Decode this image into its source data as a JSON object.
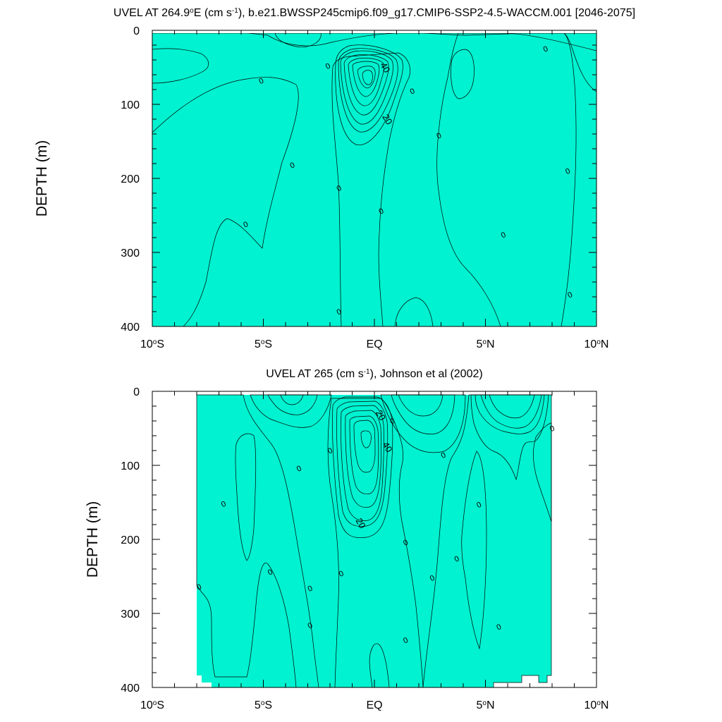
{
  "chart_data": [
    {
      "type": "contour",
      "title_main": "UVEL AT 264.9",
      "title_degree": "o",
      "title_after_degree": "E (cm s",
      "title_exponent": "-1",
      "title_rest": "), b.e21.BWSSP245cmip6.f09_g17.CMIP6-SSP2-4.5-WACCM.001 [2046-2075]",
      "ylabel": "DEPTH (m)",
      "ylim": [
        0,
        400
      ],
      "xlim": [
        -10,
        10
      ],
      "yticks": [
        0,
        100,
        200,
        300,
        400
      ],
      "xticks": [
        -10,
        -5,
        0,
        5,
        10
      ],
      "xtick_labels": [
        {
          "main": "10",
          "deg": "o",
          "suffix": "S"
        },
        {
          "main": "5",
          "deg": "o",
          "suffix": "S"
        },
        {
          "main": "EQ",
          "deg": "",
          "suffix": ""
        },
        {
          "main": "5",
          "deg": "o",
          "suffix": "N"
        },
        {
          "main": "10",
          "deg": "o",
          "suffix": "N"
        }
      ],
      "contour_labels": [
        {
          "text": "40",
          "lat": 0.5,
          "depth": 50
        },
        {
          "text": "20",
          "lat": 0.6,
          "depth": 120
        }
      ],
      "zero_markers": [
        {
          "text": "0",
          "lat": 7.7,
          "depth": 25
        },
        {
          "text": "0",
          "lat": -2.1,
          "depth": 48
        },
        {
          "text": "0",
          "lat": -5.1,
          "depth": 68
        },
        {
          "text": "0",
          "lat": 1.7,
          "depth": 82
        },
        {
          "text": "0",
          "lat": 2.9,
          "depth": 142
        },
        {
          "text": "0",
          "lat": -3.7,
          "depth": 182
        },
        {
          "text": "0",
          "lat": 8.7,
          "depth": 190
        },
        {
          "text": "0",
          "lat": -1.6,
          "depth": 213
        },
        {
          "text": "0",
          "lat": 0.3,
          "depth": 244
        },
        {
          "text": "0",
          "lat": -5.8,
          "depth": 262
        },
        {
          "text": "0",
          "lat": 5.8,
          "depth": 276
        },
        {
          "text": "0",
          "lat": 8.8,
          "depth": 357
        },
        {
          "text": "0",
          "lat": -1.6,
          "depth": 380
        }
      ]
    },
    {
      "type": "contour",
      "title_main": "UVEL AT 265",
      "title_degree": "",
      "title_after_degree": " (cm s",
      "title_exponent": "-1",
      "title_rest": "), Johnson et al (2002)",
      "ylabel": "DEPTH (m)",
      "ylim": [
        0,
        400
      ],
      "xlim": [
        -10,
        10
      ],
      "yticks": [
        0,
        100,
        200,
        300,
        400
      ],
      "xticks": [
        -10,
        -5,
        0,
        5,
        10
      ],
      "xtick_labels": [
        {
          "main": "10",
          "deg": "o",
          "suffix": "S"
        },
        {
          "main": "5",
          "deg": "o",
          "suffix": "S"
        },
        {
          "main": "EQ",
          "deg": "",
          "suffix": ""
        },
        {
          "main": "5",
          "deg": "o",
          "suffix": "N"
        },
        {
          "main": "10",
          "deg": "o",
          "suffix": "N"
        }
      ],
      "contour_labels": [
        {
          "text": "20",
          "lat": 0.3,
          "depth": 32
        },
        {
          "text": "40",
          "lat": 0.6,
          "depth": 75
        },
        {
          "text": "20",
          "lat": -0.6,
          "depth": 178
        }
      ],
      "zero_markers": [
        {
          "text": "0",
          "lat": 0.8,
          "depth": 40
        },
        {
          "text": "0",
          "lat": 8.0,
          "depth": 50
        },
        {
          "text": "0",
          "lat": -2.0,
          "depth": 80
        },
        {
          "text": "0",
          "lat": 3.1,
          "depth": 86
        },
        {
          "text": "0",
          "lat": -3.4,
          "depth": 104
        },
        {
          "text": "0",
          "lat": -6.8,
          "depth": 152
        },
        {
          "text": "0",
          "lat": 4.7,
          "depth": 153
        },
        {
          "text": "0",
          "lat": 1.4,
          "depth": 204
        },
        {
          "text": "0",
          "lat": 3.7,
          "depth": 226
        },
        {
          "text": "0",
          "lat": -4.7,
          "depth": 244
        },
        {
          "text": "0",
          "lat": -1.5,
          "depth": 246
        },
        {
          "text": "0",
          "lat": 2.6,
          "depth": 252
        },
        {
          "text": "0",
          "lat": -7.9,
          "depth": 264
        },
        {
          "text": "0",
          "lat": -2.9,
          "depth": 266
        },
        {
          "text": "0",
          "lat": -2.9,
          "depth": 316
        },
        {
          "text": "0",
          "lat": 5.6,
          "depth": 318
        },
        {
          "text": "0",
          "lat": 1.4,
          "depth": 336
        }
      ]
    }
  ]
}
